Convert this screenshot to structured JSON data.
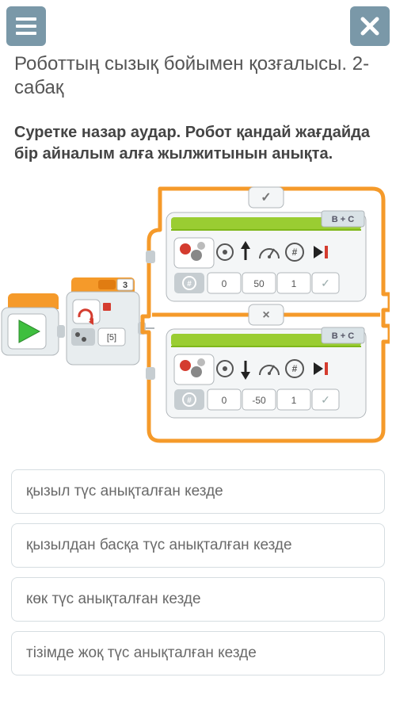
{
  "header": {
    "menu_icon": "hamburger-icon",
    "close_icon": "close-icon"
  },
  "title": "Роботтың сызық бойымен қозғалысы. 2-сабақ",
  "question": "Суретке назар аудар. Робот қандай жағдайда бір айналым алға жылжитынын анықта.",
  "diagram": {
    "colors": {
      "orange": "#f59a2a",
      "orange_dark": "#e07c12",
      "green_play": "#3fbf3f",
      "green_bar": "#9acd32",
      "green_bar_dark": "#7fb81a",
      "red": "#d43c2f",
      "gray_panel": "#e8edef",
      "gray_panel_dark": "#c6cdd1",
      "gray_border": "#b0b6ba",
      "gray_light": "#f4f6f7",
      "text": "#444444",
      "tab_bg": "#d9e2e6",
      "white": "#ffffff"
    },
    "start_block": {
      "loop_count": "3",
      "inner_label": "[5]"
    },
    "switch": {
      "top_tab": "✓",
      "bottom_tab": "×",
      "top_block": {
        "ports": "B + C",
        "direction": "up",
        "params": [
          "0",
          "50",
          "1"
        ],
        "check": "✓"
      },
      "bottom_block": {
        "ports": "B + C",
        "direction": "down",
        "params": [
          "0",
          "-50",
          "1"
        ],
        "check": "✓"
      }
    }
  },
  "answers": [
    "қызыл түс анықталған кезде",
    "қызылдан басқа түс анықталған кезде",
    "көк түс анықталған кезде",
    "тізімде жоқ түс анықталған кезде"
  ]
}
